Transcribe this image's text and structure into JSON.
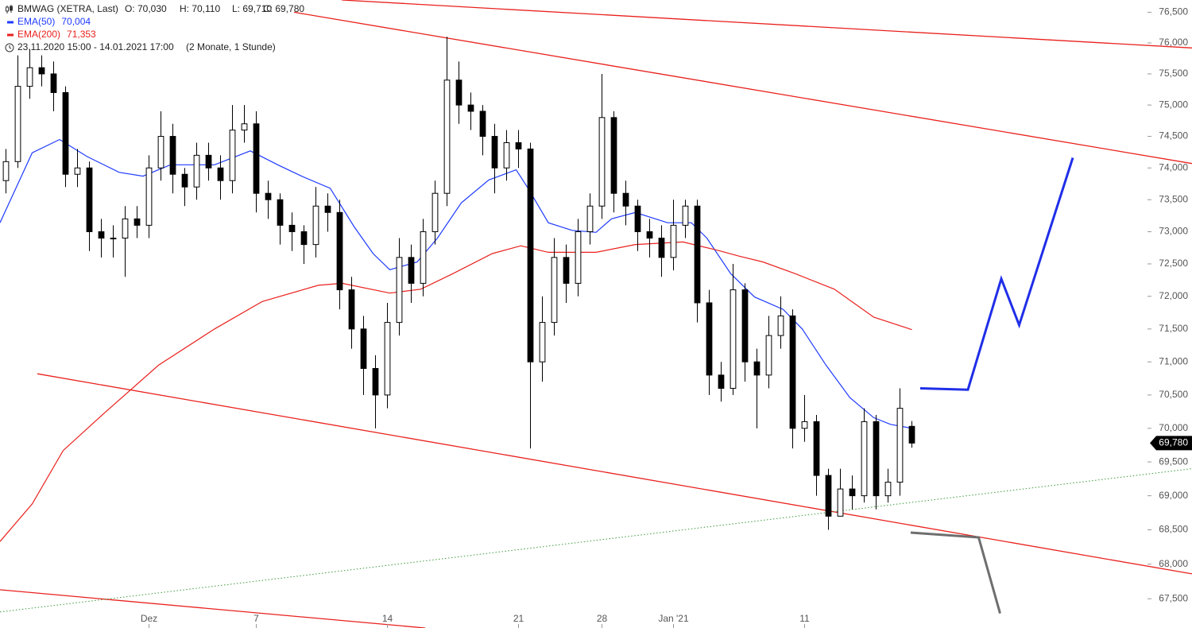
{
  "chart_data": {
    "type": "candlestick",
    "title": "BMWAG (XETRA, Last)",
    "ohlc_labels": [
      "O: 70,030",
      "H: 70,110",
      "L: 69,710",
      "C: 69,780"
    ],
    "period": "23.11.2020 15:00 - 14.01.2021 17:00",
    "period_note": "(2 Monate, 1 Stunde)",
    "log_scale": true,
    "grid": false,
    "xlim": [
      -0.5,
      99.5
    ],
    "ylim": [
      67.08,
      76.7
    ],
    "yticks": [
      {
        "value": 67.5,
        "label": "67,500"
      },
      {
        "value": 68,
        "label": "68,000"
      },
      {
        "value": 68.5,
        "label": "68,500"
      },
      {
        "value": 69,
        "label": "69,000"
      },
      {
        "value": 69.5,
        "label": "69,500"
      },
      {
        "value": 70,
        "label": "70,000"
      },
      {
        "value": 70.5,
        "label": "70,500"
      },
      {
        "value": 71,
        "label": "71,000"
      },
      {
        "value": 71.5,
        "label": "71,500"
      },
      {
        "value": 72,
        "label": "72,000"
      },
      {
        "value": 72.5,
        "label": "72,500"
      },
      {
        "value": 73,
        "label": "73,000"
      },
      {
        "value": 73.5,
        "label": "73,500"
      },
      {
        "value": 74,
        "label": "74,000"
      },
      {
        "value": 74.5,
        "label": "74,500"
      },
      {
        "value": 75,
        "label": "75,000"
      },
      {
        "value": 75.5,
        "label": "75,500"
      },
      {
        "value": 76,
        "label": "76,000"
      },
      {
        "value": 76.5,
        "label": "76,500"
      }
    ],
    "categories": [
      null,
      null,
      null,
      null,
      null,
      null,
      null,
      null,
      null,
      null,
      null,
      null,
      "Dez",
      null,
      null,
      null,
      null,
      null,
      null,
      null,
      null,
      "7",
      null,
      null,
      null,
      null,
      null,
      null,
      null,
      null,
      null,
      null,
      "14",
      null,
      null,
      null,
      null,
      null,
      null,
      null,
      null,
      null,
      null,
      "21",
      null,
      null,
      null,
      null,
      null,
      null,
      "28",
      null,
      null,
      null,
      null,
      null,
      "Jan '21",
      null,
      null,
      null,
      null,
      null,
      null,
      null,
      null,
      null,
      null,
      "11",
      null,
      null,
      null,
      null,
      null,
      null,
      null,
      null,
      null
    ],
    "candles": {
      "open": [
        73.8,
        74.1,
        75.3,
        75.6,
        75.5,
        75.2,
        73.9,
        74.0,
        73.0,
        72.9,
        72.9,
        73.2,
        73.1,
        74.0,
        74.5,
        73.9,
        73.7,
        74.2,
        74.0,
        73.8,
        74.6,
        74.7,
        73.6,
        73.5,
        73.1,
        73.0,
        72.8,
        73.4,
        73.3,
        72.1,
        71.5,
        70.9,
        70.5,
        71.6,
        72.6,
        72.2,
        73.0,
        73.6,
        75.4,
        75.0,
        74.9,
        74.5,
        74.0,
        74.4,
        74.3,
        71.0,
        71.6,
        72.6,
        72.2,
        73.0,
        73.4,
        74.8,
        73.6,
        73.4,
        73.0,
        72.9,
        72.6,
        73.1,
        73.4,
        71.9,
        70.8,
        70.6,
        72.1,
        71.0,
        70.8,
        71.4,
        71.7,
        70.0,
        70.1,
        69.3,
        68.7,
        69.1,
        69.0,
        70.1,
        69.0,
        69.2,
        70.03
      ],
      "high": [
        74.3,
        75.8,
        75.9,
        75.8,
        75.7,
        75.3,
        74.3,
        74.1,
        73.2,
        73.1,
        73.4,
        73.4,
        74.2,
        74.9,
        74.7,
        74.0,
        74.4,
        74.4,
        74.2,
        75.0,
        75.0,
        74.9,
        73.8,
        73.6,
        73.3,
        73.1,
        73.7,
        73.6,
        73.5,
        72.3,
        71.7,
        71.1,
        71.9,
        72.9,
        72.8,
        73.2,
        73.8,
        76.1,
        75.7,
        75.2,
        75.0,
        74.7,
        74.6,
        74.6,
        74.4,
        72.0,
        72.9,
        72.8,
        73.2,
        73.6,
        75.5,
        74.9,
        73.8,
        73.5,
        73.2,
        73.1,
        73.5,
        73.5,
        73.5,
        72.1,
        71.0,
        72.5,
        72.2,
        71.2,
        71.7,
        72.0,
        71.8,
        70.5,
        70.2,
        69.4,
        69.4,
        69.3,
        70.3,
        70.2,
        69.4,
        70.6,
        70.11
      ],
      "low": [
        73.6,
        74.0,
        75.1,
        75.3,
        74.9,
        73.7,
        73.7,
        72.7,
        72.6,
        72.6,
        72.3,
        72.9,
        72.9,
        73.8,
        73.6,
        73.4,
        73.5,
        73.8,
        73.5,
        73.6,
        74.4,
        73.3,
        73.2,
        72.8,
        72.7,
        72.5,
        72.6,
        73.0,
        71.8,
        71.2,
        70.5,
        70.0,
        70.3,
        71.4,
        71.9,
        72.0,
        72.8,
        73.4,
        74.7,
        74.6,
        74.2,
        73.6,
        73.8,
        74.0,
        69.7,
        70.7,
        71.4,
        71.9,
        72.0,
        72.8,
        73.2,
        73.3,
        73.1,
        72.7,
        72.6,
        72.3,
        72.4,
        72.9,
        71.6,
        70.5,
        70.4,
        70.5,
        70.7,
        70.0,
        70.6,
        71.2,
        69.7,
        69.8,
        69.0,
        68.5,
        68.7,
        68.8,
        68.9,
        68.8,
        68.9,
        69.0,
        69.71
      ],
      "close": [
        74.1,
        75.3,
        75.6,
        75.5,
        75.2,
        73.9,
        74.0,
        73.0,
        72.9,
        72.9,
        73.2,
        73.1,
        74.0,
        74.5,
        73.9,
        73.7,
        74.2,
        74.0,
        73.8,
        74.6,
        74.7,
        73.6,
        73.5,
        73.1,
        73.0,
        72.8,
        73.4,
        73.3,
        72.1,
        71.5,
        70.9,
        70.5,
        71.6,
        72.6,
        72.2,
        73.0,
        73.6,
        75.4,
        75.0,
        74.9,
        74.5,
        74.0,
        74.4,
        74.3,
        71.0,
        71.6,
        72.6,
        72.2,
        73.0,
        73.4,
        74.8,
        73.6,
        73.4,
        73.0,
        72.9,
        72.6,
        73.1,
        73.4,
        71.9,
        70.8,
        70.6,
        72.1,
        71.0,
        70.8,
        71.4,
        71.7,
        70.0,
        70.1,
        69.3,
        68.7,
        69.1,
        69.0,
        70.1,
        69.0,
        69.2,
        70.3,
        69.78
      ]
    },
    "series": [
      {
        "name": "EMA(50)",
        "legend_value": "70,004",
        "color": "#1f3bff",
        "x": [
          -0.5,
          2.2,
          4.5,
          6.8,
          9.5,
          11.5,
          13.8,
          17.5,
          20.5,
          22.8,
          24.8,
          27.2,
          29.2,
          30.8,
          32.2,
          34.5,
          36.2,
          38.2,
          40.5,
          42.8,
          43.8,
          45.5,
          47.5,
          49.5,
          50.8,
          52.8,
          55.5,
          57.5,
          58.8,
          60.8,
          62.8,
          65.2,
          66.8,
          68.8,
          70.8,
          72.8,
          74.2,
          76
        ],
        "values": [
          73.14,
          74.24,
          74.45,
          74.18,
          73.93,
          73.87,
          74.05,
          74.05,
          74.27,
          74.05,
          73.87,
          73.68,
          73.08,
          72.66,
          72.41,
          72.53,
          72.9,
          73.45,
          73.81,
          73.97,
          73.68,
          73.14,
          73.02,
          72.99,
          73.2,
          73.3,
          73.14,
          73.14,
          72.9,
          72.35,
          71.99,
          71.8,
          71.5,
          70.95,
          70.46,
          70.16,
          70.06,
          70.0
        ]
      },
      {
        "name": "EMA(200)",
        "legend_value": "71,353",
        "color": "#e8211d",
        "x": [
          -0.5,
          2.2,
          4.8,
          8.2,
          12.8,
          17.5,
          21.5,
          26.2,
          28.2,
          32.2,
          34.8,
          37.5,
          40.8,
          43.2,
          45.5,
          49.5,
          52.8,
          56.8,
          59.5,
          61.5,
          63.5,
          66.2,
          69.5,
          72.8,
          76
        ],
        "values": [
          68.33,
          68.88,
          69.67,
          70.22,
          70.95,
          71.5,
          71.92,
          72.17,
          72.2,
          72.05,
          72.11,
          72.35,
          72.66,
          72.78,
          72.68,
          72.68,
          72.8,
          72.84,
          72.72,
          72.62,
          72.53,
          72.35,
          72.11,
          71.68,
          71.49
        ]
      }
    ],
    "trendlines": [
      {
        "color": "#e8211d",
        "dashed": false,
        "x": [
          28.17,
          99.5
        ],
        "values": [
          76.7,
          75.92
        ]
      },
      {
        "color": "#e8211d",
        "dashed": false,
        "x": [
          24.17,
          99.5
        ],
        "values": [
          76.5,
          74.07
        ]
      },
      {
        "color": "#e8211d",
        "dashed": false,
        "x": [
          2.63,
          99.5
        ],
        "values": [
          70.82,
          67.86
        ]
      },
      {
        "color": "#e8211d",
        "dashed": false,
        "x": [
          -0.5,
          35.17
        ],
        "values": [
          67.63,
          67.08
        ]
      },
      {
        "color": "#3c9a3c",
        "dashed": true,
        "x": [
          -0.5,
          99.5
        ],
        "values": [
          67.31,
          69.4
        ]
      }
    ],
    "projections": [
      {
        "color": "#1f2ee8",
        "x": [
          76.7,
          80.7,
          83.5,
          85.0,
          89.5
        ],
        "values": [
          70.6,
          70.58,
          72.27,
          71.56,
          74.16
        ]
      },
      {
        "color": "#6e6e6e",
        "x": [
          75.9,
          81.6,
          83.4
        ],
        "values": [
          68.46,
          68.39,
          67.29
        ]
      }
    ],
    "last_price": {
      "value": 69.78,
      "label": "69,780",
      "color": "#000000"
    }
  }
}
